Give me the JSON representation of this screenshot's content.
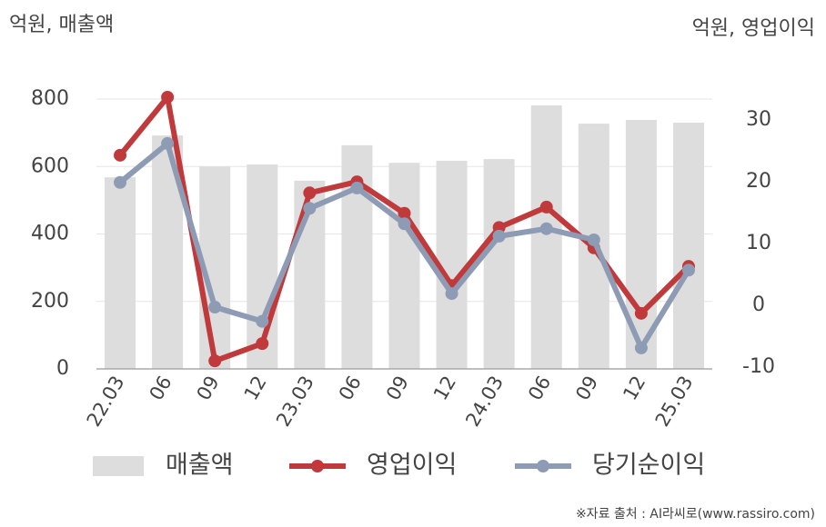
{
  "chart_data": {
    "type": "bar-line",
    "y_label": "억원, 매출액",
    "y2_label": "억원, 영업이익",
    "source": "※자료 출처 : AI라씨로(www.rassiro.com)",
    "categories": [
      "22.03",
      "06",
      "09",
      "12",
      "23.03",
      "06",
      "09",
      "12",
      "24.03",
      "06",
      "09",
      "12",
      "25.03"
    ],
    "series": [
      {
        "name": "매출액",
        "type": "bar",
        "color": "#dddddd",
        "values": [
          568,
          692,
          600,
          606,
          558,
          663,
          611,
          617,
          622,
          781,
          727,
          738,
          730
        ]
      },
      {
        "name": "영업이익",
        "type": "line",
        "axis": "y2",
        "color": "#c0393b",
        "values": [
          24.3,
          33.7,
          -9.0,
          -6.2,
          18.2,
          20.0,
          14.9,
          3.2,
          12.6,
          15.9,
          9.3,
          -1.3,
          6.3
        ]
      },
      {
        "name": "당기순이익",
        "type": "line",
        "axis": "y2",
        "color": "#8e9bb5",
        "values": [
          19.9,
          26.2,
          -0.3,
          -2.6,
          15.7,
          19.0,
          13.2,
          1.9,
          11.2,
          12.4,
          10.6,
          -6.9,
          5.7
        ]
      }
    ],
    "ylim": [
      0,
      800
    ],
    "yticks": [
      0,
      200,
      400,
      600,
      800
    ],
    "y2lim": [
      -10.3,
      33.4
    ],
    "y2ticks": [
      -10,
      0,
      10,
      20,
      30
    ],
    "grid": true,
    "legend": "bottom"
  }
}
